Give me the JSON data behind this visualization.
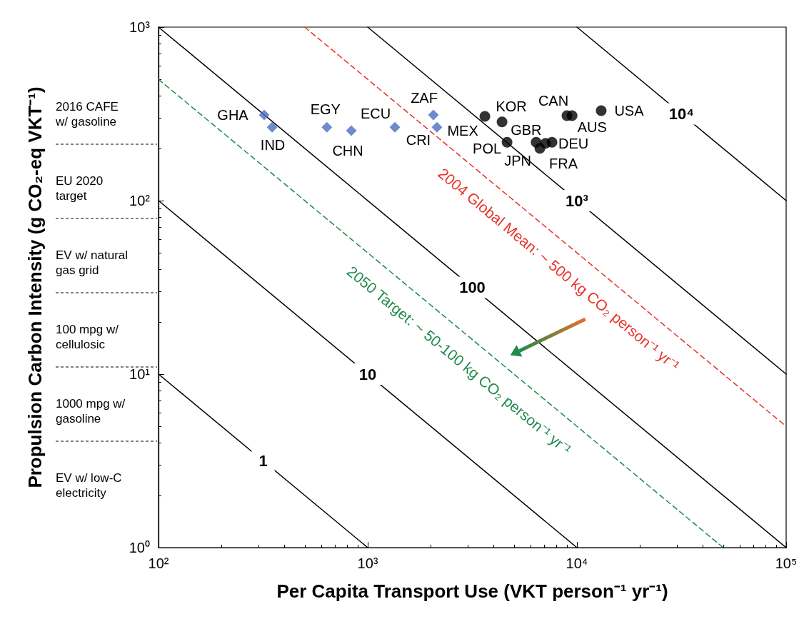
{
  "chart_data": {
    "type": "scatter",
    "xlabel": "Per Capita Transport Use (VKT person⁻¹ yr⁻¹)",
    "ylabel": "Propulsion Carbon Intensity (g CO₂-eq VKT⁻¹)",
    "log": "xy",
    "grid": false,
    "xlim": [
      100,
      100000
    ],
    "ylim": [
      1,
      1000
    ],
    "xticks": [
      {
        "value": 100,
        "label": "10²"
      },
      {
        "value": 1000,
        "label": "10³"
      },
      {
        "value": 10000,
        "label": "10⁴"
      },
      {
        "value": 100000,
        "label": "10⁵"
      }
    ],
    "yticks": [
      {
        "value": 1,
        "label": "10⁰"
      },
      {
        "value": 10,
        "label": "10¹"
      },
      {
        "value": 100,
        "label": "10²"
      },
      {
        "value": 1000,
        "label": "10³"
      }
    ],
    "series": [
      {
        "marker": "diamond",
        "color": "#4a6fc1",
        "x": [
          320,
          349,
          638,
          835,
          1349,
          2061,
          2142
        ],
        "values": [
          312,
          265,
          265,
          253,
          265,
          312,
          265
        ]
      },
      {
        "marker": "circle",
        "color": "#000000",
        "x": [
          3631,
          4385,
          4634,
          6383,
          6650,
          7080,
          7600,
          8960,
          9480,
          13060
        ],
        "values": [
          306,
          284,
          217,
          217,
          200,
          214,
          217,
          309,
          309,
          330
        ]
      },
      {
        "type": "line",
        "name": "1",
        "color": "#000000",
        "line_style": "solid",
        "x": [
          100,
          1000
        ],
        "values": [
          10,
          1
        ]
      },
      {
        "type": "line",
        "name": "10",
        "color": "#000000",
        "line_style": "solid",
        "x": [
          100,
          10000
        ],
        "values": [
          100,
          1
        ]
      },
      {
        "type": "line",
        "name": "100",
        "color": "#000000",
        "line_style": "solid",
        "x": [
          100,
          100000
        ],
        "values": [
          1000,
          1
        ]
      },
      {
        "type": "line",
        "name": "10³",
        "color": "#000000",
        "line_style": "solid",
        "x": [
          1000,
          100000
        ],
        "values": [
          1000,
          10
        ]
      },
      {
        "type": "line",
        "name": "10⁴",
        "color": "#000000",
        "line_style": "solid",
        "x": [
          10000,
          100000
        ],
        "values": [
          1000,
          100
        ]
      },
      {
        "type": "line",
        "name": "2004 Global Mean: ~ 500 kg CO₂ person⁻¹ yr⁻¹",
        "color": "#e8322a",
        "line_style": "dashed",
        "x": [
          500,
          100000
        ],
        "values": [
          1000,
          5
        ]
      },
      {
        "type": "line",
        "name": "2050 Target: ~ 50-100 kg CO₂ person⁻¹ yr⁻¹",
        "color": "#1f8a4c",
        "line_style": "dashed",
        "x": [
          100,
          50000
        ],
        "values": [
          500,
          1
        ]
      }
    ],
    "annotations": [
      "2016 CAFE\nw/ gasoline",
      "EU 2020\ntarget",
      "EV w/ natural\ngas grid",
      "100 mpg w/\ncellulosic",
      "1000 mpg w/\ngasoline",
      "EV w/ low-C\nelectricity",
      {
        "text": "GHA",
        "x": 320,
        "y": 312
      },
      {
        "text": "IND",
        "x": 349,
        "y": 265
      },
      {
        "text": "EGY",
        "x": 638,
        "y": 265
      },
      {
        "text": "CHN",
        "x": 835,
        "y": 253
      },
      {
        "text": "ECU",
        "x": 1349,
        "y": 265
      },
      {
        "text": "CRI",
        "x": 2142,
        "y": 265
      },
      {
        "text": "ZAF",
        "x": 2061,
        "y": 312
      },
      {
        "text": "MEX",
        "x": 3631,
        "y": 306
      },
      {
        "text": "KOR",
        "x": 4385,
        "y": 284
      },
      {
        "text": "POL",
        "x": 4634,
        "y": 217
      },
      {
        "text": "GBR",
        "x": 6383,
        "y": 217
      },
      {
        "text": "JPN",
        "x": 6650,
        "y": 200
      },
      {
        "text": "FRA",
        "x": 7080,
        "y": 214
      },
      {
        "text": "DEU",
        "x": 7600,
        "y": 217
      },
      {
        "text": "CAN",
        "x": 8960,
        "y": 309
      },
      {
        "text": "AUS",
        "x": 9480,
        "y": 309
      },
      {
        "text": "USA",
        "x": 13060,
        "y": 330
      }
    ]
  }
}
